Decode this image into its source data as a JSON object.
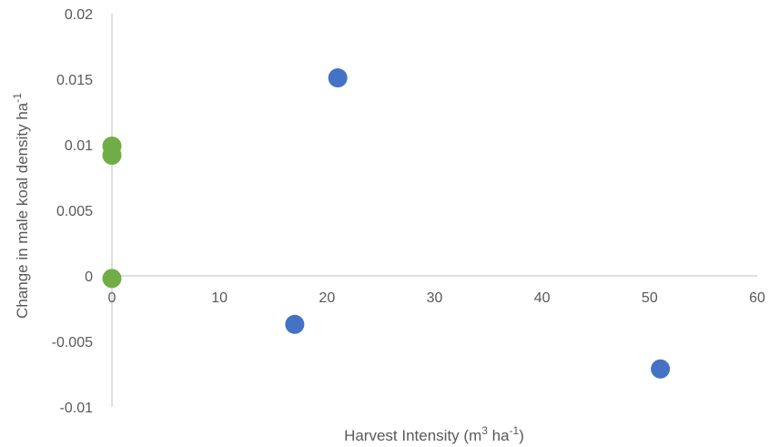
{
  "chart_data": {
    "type": "scatter",
    "title": "",
    "xlabel": {
      "text": "Harvest Intensity (m",
      "sup1": "3",
      "mid": " ha",
      "sup2": "-1",
      "end": ")"
    },
    "ylabel": {
      "text": "Change in male koal density ha",
      "sup": "-1"
    },
    "xlim": [
      0,
      60
    ],
    "ylim": [
      -0.01,
      0.02
    ],
    "x_ticks": [
      0,
      10,
      20,
      30,
      40,
      50,
      60
    ],
    "x_tick_labels": [
      "0",
      "10",
      "20",
      "30",
      "40",
      "50",
      "60"
    ],
    "y_ticks": [
      -0.01,
      -0.005,
      0,
      0.005,
      0.01,
      0.015,
      0.02
    ],
    "y_tick_labels": [
      "-0.01",
      "-0.005",
      "0",
      "0.005",
      "0.01",
      "0.015",
      "0.02"
    ],
    "grid": false,
    "series": [
      {
        "color": "#4472C4",
        "points": [
          {
            "x": 21,
            "y": 0.0151
          },
          {
            "x": 17,
            "y": -0.0037
          },
          {
            "x": 51,
            "y": -0.0071
          }
        ]
      },
      {
        "color": "#70AD47",
        "points": [
          {
            "x": 0,
            "y": 0.0099
          },
          {
            "x": 0,
            "y": 0.0092
          },
          {
            "x": 0,
            "y": -0.0002
          }
        ]
      }
    ]
  }
}
